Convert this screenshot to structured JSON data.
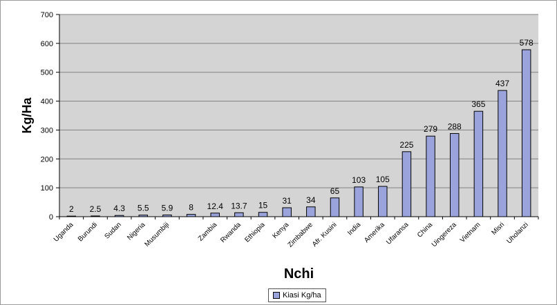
{
  "colors": {
    "plot_bg": "#d4d4d4",
    "bar_fill": "#9aa3dc",
    "bar_stroke": "#000000",
    "gridline": "#808080",
    "axis": "#000000"
  },
  "chart_data": {
    "type": "bar",
    "title": "",
    "xlabel": "Nchi",
    "ylabel": "Kg/Ha",
    "ylim": [
      0,
      700
    ],
    "yticks": [
      0,
      100,
      200,
      300,
      400,
      500,
      600,
      700
    ],
    "grid": true,
    "legend_position": "bottom",
    "categories": [
      "Uganda",
      "Burundi",
      "Sudan",
      "Nigeria",
      "Musumbiji",
      "",
      "Zambia",
      "Rwanda",
      "Ethiopia",
      "Kenya",
      "Zimbabwe",
      "Afr. Kusini",
      "India",
      "Amerika",
      "Ufaransa",
      "China",
      "Uingereza",
      "Vietnam",
      "Misri",
      "Uholanzi"
    ],
    "series": [
      {
        "name": "Kiasi Kg/ha",
        "values": [
          2,
          2.5,
          4.3,
          5.5,
          5.9,
          8,
          12.4,
          13.7,
          15,
          31,
          34,
          65,
          103,
          105,
          225,
          279,
          288,
          365,
          437,
          578
        ],
        "labels": [
          "2",
          "2.5",
          "4.3",
          "5.5",
          "5.9",
          "8",
          "12.4",
          "13.7",
          "15",
          "31",
          "34",
          "65",
          "103",
          "105",
          "225",
          "279",
          "288",
          "365",
          "437",
          "578"
        ]
      }
    ]
  }
}
